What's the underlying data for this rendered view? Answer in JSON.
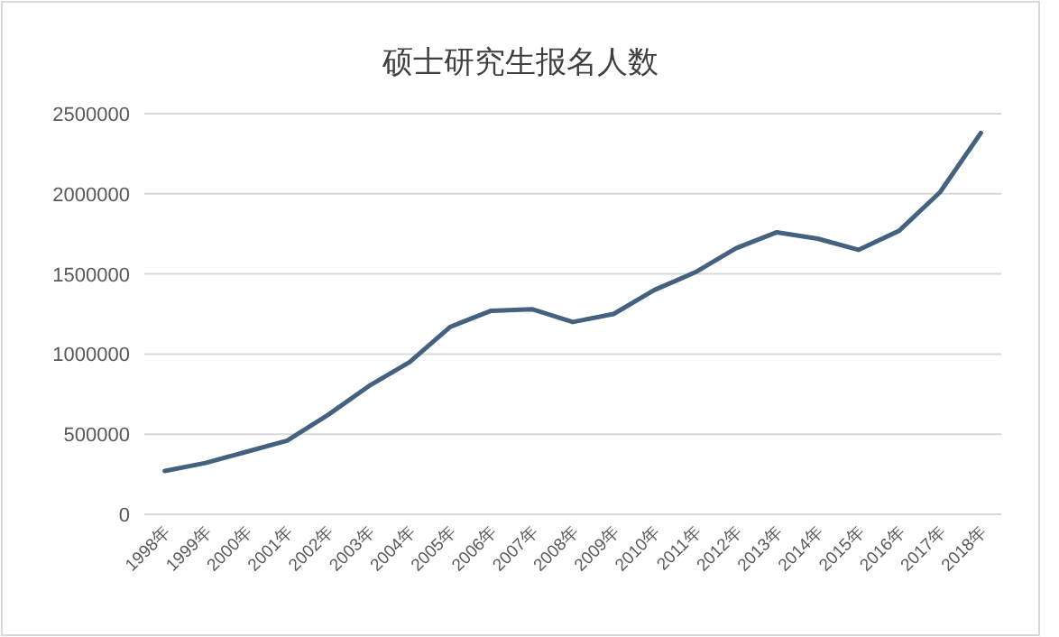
{
  "chart_data": {
    "type": "line",
    "title": "硕士研究生报名人数",
    "categories": [
      "1998年",
      "1999年",
      "2000年",
      "2001年",
      "2002年",
      "2003年",
      "2004年",
      "2005年",
      "2006年",
      "2007年",
      "2008年",
      "2009年",
      "2010年",
      "2011年",
      "2012年",
      "2013年",
      "2014年",
      "2015年",
      "2016年",
      "2017年",
      "2018年"
    ],
    "series": [
      {
        "color": "#44627f",
        "values": [
          270000,
          320000,
          390000,
          460000,
          620000,
          800000,
          950000,
          1170000,
          1270000,
          1280000,
          1200000,
          1250000,
          1400000,
          1510000,
          1660000,
          1760000,
          1720000,
          1650000,
          1770000,
          2010000,
          2380000
        ]
      }
    ],
    "ylim": [
      0,
      2500000
    ],
    "yticks": [
      0,
      500000,
      1000000,
      1500000,
      2000000,
      2500000
    ],
    "grid": "y",
    "marker": "none",
    "line_style": "solid"
  }
}
